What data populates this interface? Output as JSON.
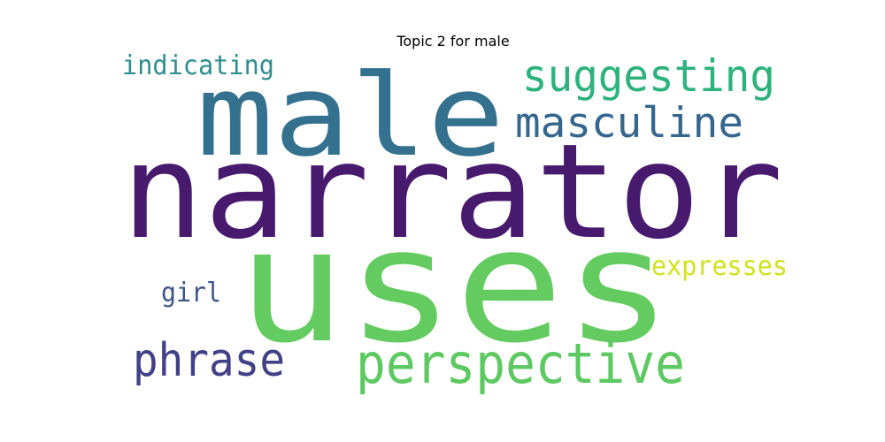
{
  "chart_data": {
    "type": "wordcloud",
    "title": "Topic 2 for male",
    "words": [
      {
        "text": "narrator",
        "color": "#471a6e"
      },
      {
        "text": "uses",
        "color": "#63cb5f"
      },
      {
        "text": "male",
        "color": "#34718e"
      },
      {
        "text": "suggesting",
        "color": "#2db27d"
      },
      {
        "text": "masculine",
        "color": "#35678e"
      },
      {
        "text": "indicating",
        "color": "#2f8e8d"
      },
      {
        "text": "perspective",
        "color": "#5ec962"
      },
      {
        "text": "phrase",
        "color": "#424086"
      },
      {
        "text": "expresses",
        "color": "#d1e21c"
      },
      {
        "text": "girl",
        "color": "#3b528b"
      }
    ]
  }
}
